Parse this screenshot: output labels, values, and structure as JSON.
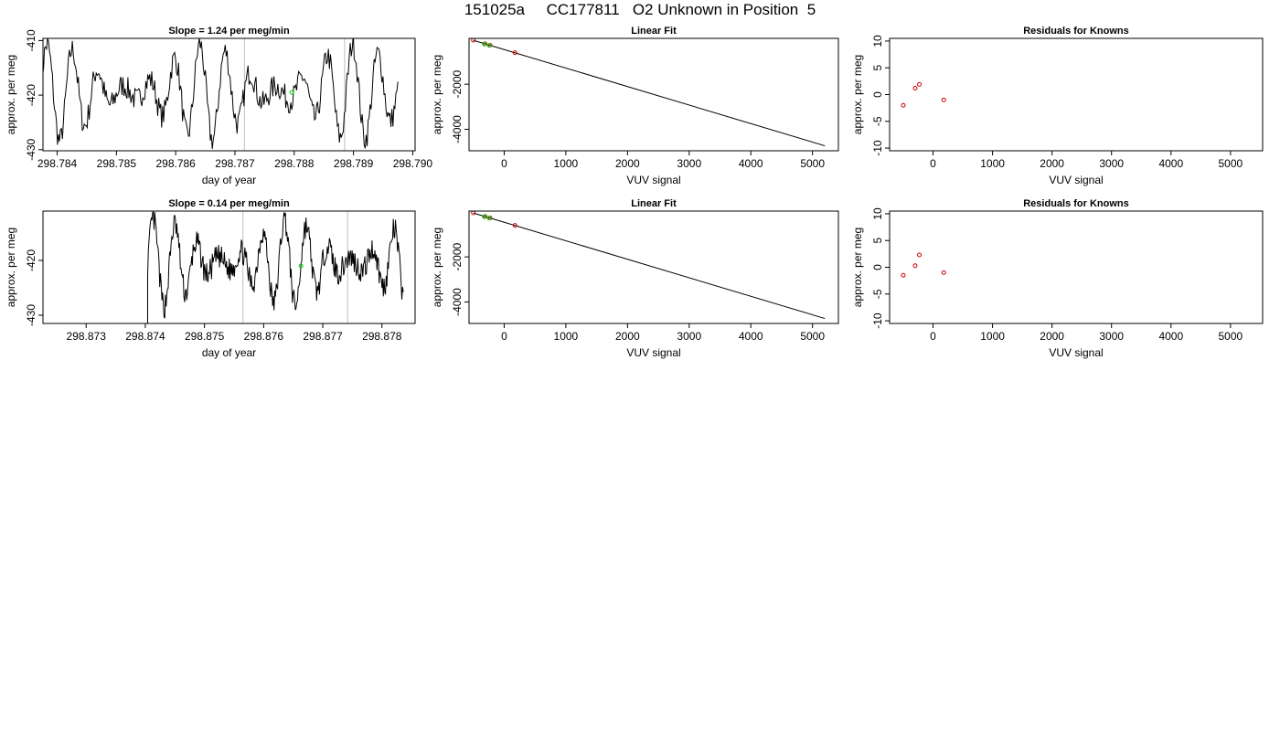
{
  "page": {
    "title": "151025a     CC177811   O2 Unknown in Position  5"
  },
  "colors": {
    "line": "#000000",
    "unknown_point": "#00cc00",
    "known_point": "#cc0000",
    "marker_vline": "#bebebe"
  },
  "chart_data": [
    {
      "id": "ts1",
      "type": "line",
      "title": "Slope =  1.24  per meg/min",
      "xlabel": "day of year",
      "ylabel": "approx. per meg",
      "xlim": [
        298.78376,
        298.79004
      ],
      "ylim": [
        -430.2,
        -409.6
      ],
      "xticks": [
        298.784,
        298.785,
        298.786,
        298.787,
        298.788,
        298.789,
        298.79
      ],
      "xtick_labels": [
        "298.784",
        "298.785",
        "298.786",
        "298.787",
        "298.788",
        "298.789",
        "298.790"
      ],
      "yticks": [
        -410,
        -420,
        -430
      ],
      "ytick_labels": [
        "-410",
        "-420",
        "-430"
      ],
      "vlines": [
        298.78716,
        298.78885
      ],
      "series_start": 298.78372,
      "series_end": 298.78975,
      "mean": -419.5,
      "amplitude": 7.8,
      "period": 0.00043,
      "highlight": [
        {
          "x": 298.78796,
          "y": -419.5
        }
      ]
    },
    {
      "id": "fit1",
      "type": "scatter",
      "title": "Linear Fit",
      "xlabel": "VUV signal",
      "ylabel": "approx. per meg",
      "xlim": [
        -570,
        5420
      ],
      "ylim": [
        -4950,
        30
      ],
      "xticks": [
        0,
        1000,
        2000,
        3000,
        4000,
        5000
      ],
      "xtick_labels": [
        "0",
        "1000",
        "2000",
        "3000",
        "4000",
        "5000"
      ],
      "yticks": [
        -2000,
        -4000
      ],
      "ytick_labels": [
        "-2000",
        "-4000"
      ],
      "fit_line": [
        [
          -500,
          -55
        ],
        [
          5200,
          -4730
        ]
      ],
      "knowns": [
        [
          -500,
          -52
        ],
        [
          -310,
          -210
        ],
        [
          -230,
          -275
        ],
        [
          175,
          -605
        ]
      ],
      "unknowns": [
        [
          -320,
          -220
        ],
        [
          -240,
          -282
        ]
      ]
    },
    {
      "id": "res1",
      "type": "scatter",
      "title": "Residuals for Knowns",
      "xlabel": "VUV signal",
      "ylabel": "approx. per meg",
      "xlim": [
        -730,
        5540
      ],
      "ylim": [
        -10.5,
        10.5
      ],
      "xticks": [
        0,
        1000,
        2000,
        3000,
        4000,
        5000
      ],
      "xtick_labels": [
        "0",
        "1000",
        "2000",
        "3000",
        "4000",
        "5000"
      ],
      "yticks": [
        10,
        5,
        0,
        -5,
        -10
      ],
      "ytick_labels": [
        "10",
        "5",
        "0",
        "-5",
        "-10"
      ],
      "knowns": [
        [
          -500,
          -2.0
        ],
        [
          -300,
          1.2
        ],
        [
          -230,
          1.9
        ],
        [
          180,
          -1.0
        ]
      ]
    },
    {
      "id": "ts2",
      "type": "line",
      "title": "Slope =  0.14  per meg/min",
      "xlabel": "day of year",
      "ylabel": "approx. per meg",
      "xlim": [
        298.87227,
        298.87856
      ],
      "ylim": [
        -431.5,
        -411.0
      ],
      "xticks": [
        298.873,
        298.874,
        298.875,
        298.876,
        298.877,
        298.878
      ],
      "xtick_labels": [
        "298.873",
        "298.874",
        "298.875",
        "298.876",
        "298.877",
        "298.878"
      ],
      "yticks": [
        -420,
        -430
      ],
      "ytick_labels": [
        "-420",
        "-430"
      ],
      "vlines": [
        298.87565,
        298.87742
      ],
      "series_start": 298.87404,
      "series_end": 298.87836,
      "mean": -420.5,
      "amplitude": 7.0,
      "period": 0.00037,
      "highlight": [
        {
          "x": 298.87663,
          "y": -421.0
        }
      ]
    },
    {
      "id": "fit2",
      "type": "scatter",
      "title": "Linear Fit",
      "xlabel": "VUV signal",
      "ylabel": "approx. per meg",
      "xlim": [
        -570,
        5420
      ],
      "ylim": [
        -4950,
        30
      ],
      "xticks": [
        0,
        1000,
        2000,
        3000,
        4000,
        5000
      ],
      "xtick_labels": [
        "0",
        "1000",
        "2000",
        "3000",
        "4000",
        "5000"
      ],
      "yticks": [
        -2000,
        -4000
      ],
      "ytick_labels": [
        "-2000",
        "-4000"
      ],
      "fit_line": [
        [
          -500,
          -55
        ],
        [
          5200,
          -4730
        ]
      ],
      "knowns": [
        [
          -500,
          -52
        ],
        [
          -310,
          -210
        ],
        [
          -230,
          -275
        ],
        [
          175,
          -605
        ]
      ],
      "unknowns": [
        [
          -320,
          -220
        ],
        [
          -240,
          -282
        ]
      ]
    },
    {
      "id": "res2",
      "type": "scatter",
      "title": "Residuals for Knowns",
      "xlabel": "VUV signal",
      "ylabel": "approx. per meg",
      "xlim": [
        -730,
        5540
      ],
      "ylim": [
        -10.5,
        10.5
      ],
      "xticks": [
        0,
        1000,
        2000,
        3000,
        4000,
        5000
      ],
      "xtick_labels": [
        "0",
        "1000",
        "2000",
        "3000",
        "4000",
        "5000"
      ],
      "yticks": [
        10,
        5,
        0,
        -5,
        -10
      ],
      "ytick_labels": [
        "10",
        "5",
        "0",
        "-5",
        "-10"
      ],
      "knowns": [
        [
          -500,
          -1.5
        ],
        [
          -300,
          0.3
        ],
        [
          -230,
          2.3
        ],
        [
          180,
          -1.0
        ]
      ]
    }
  ]
}
